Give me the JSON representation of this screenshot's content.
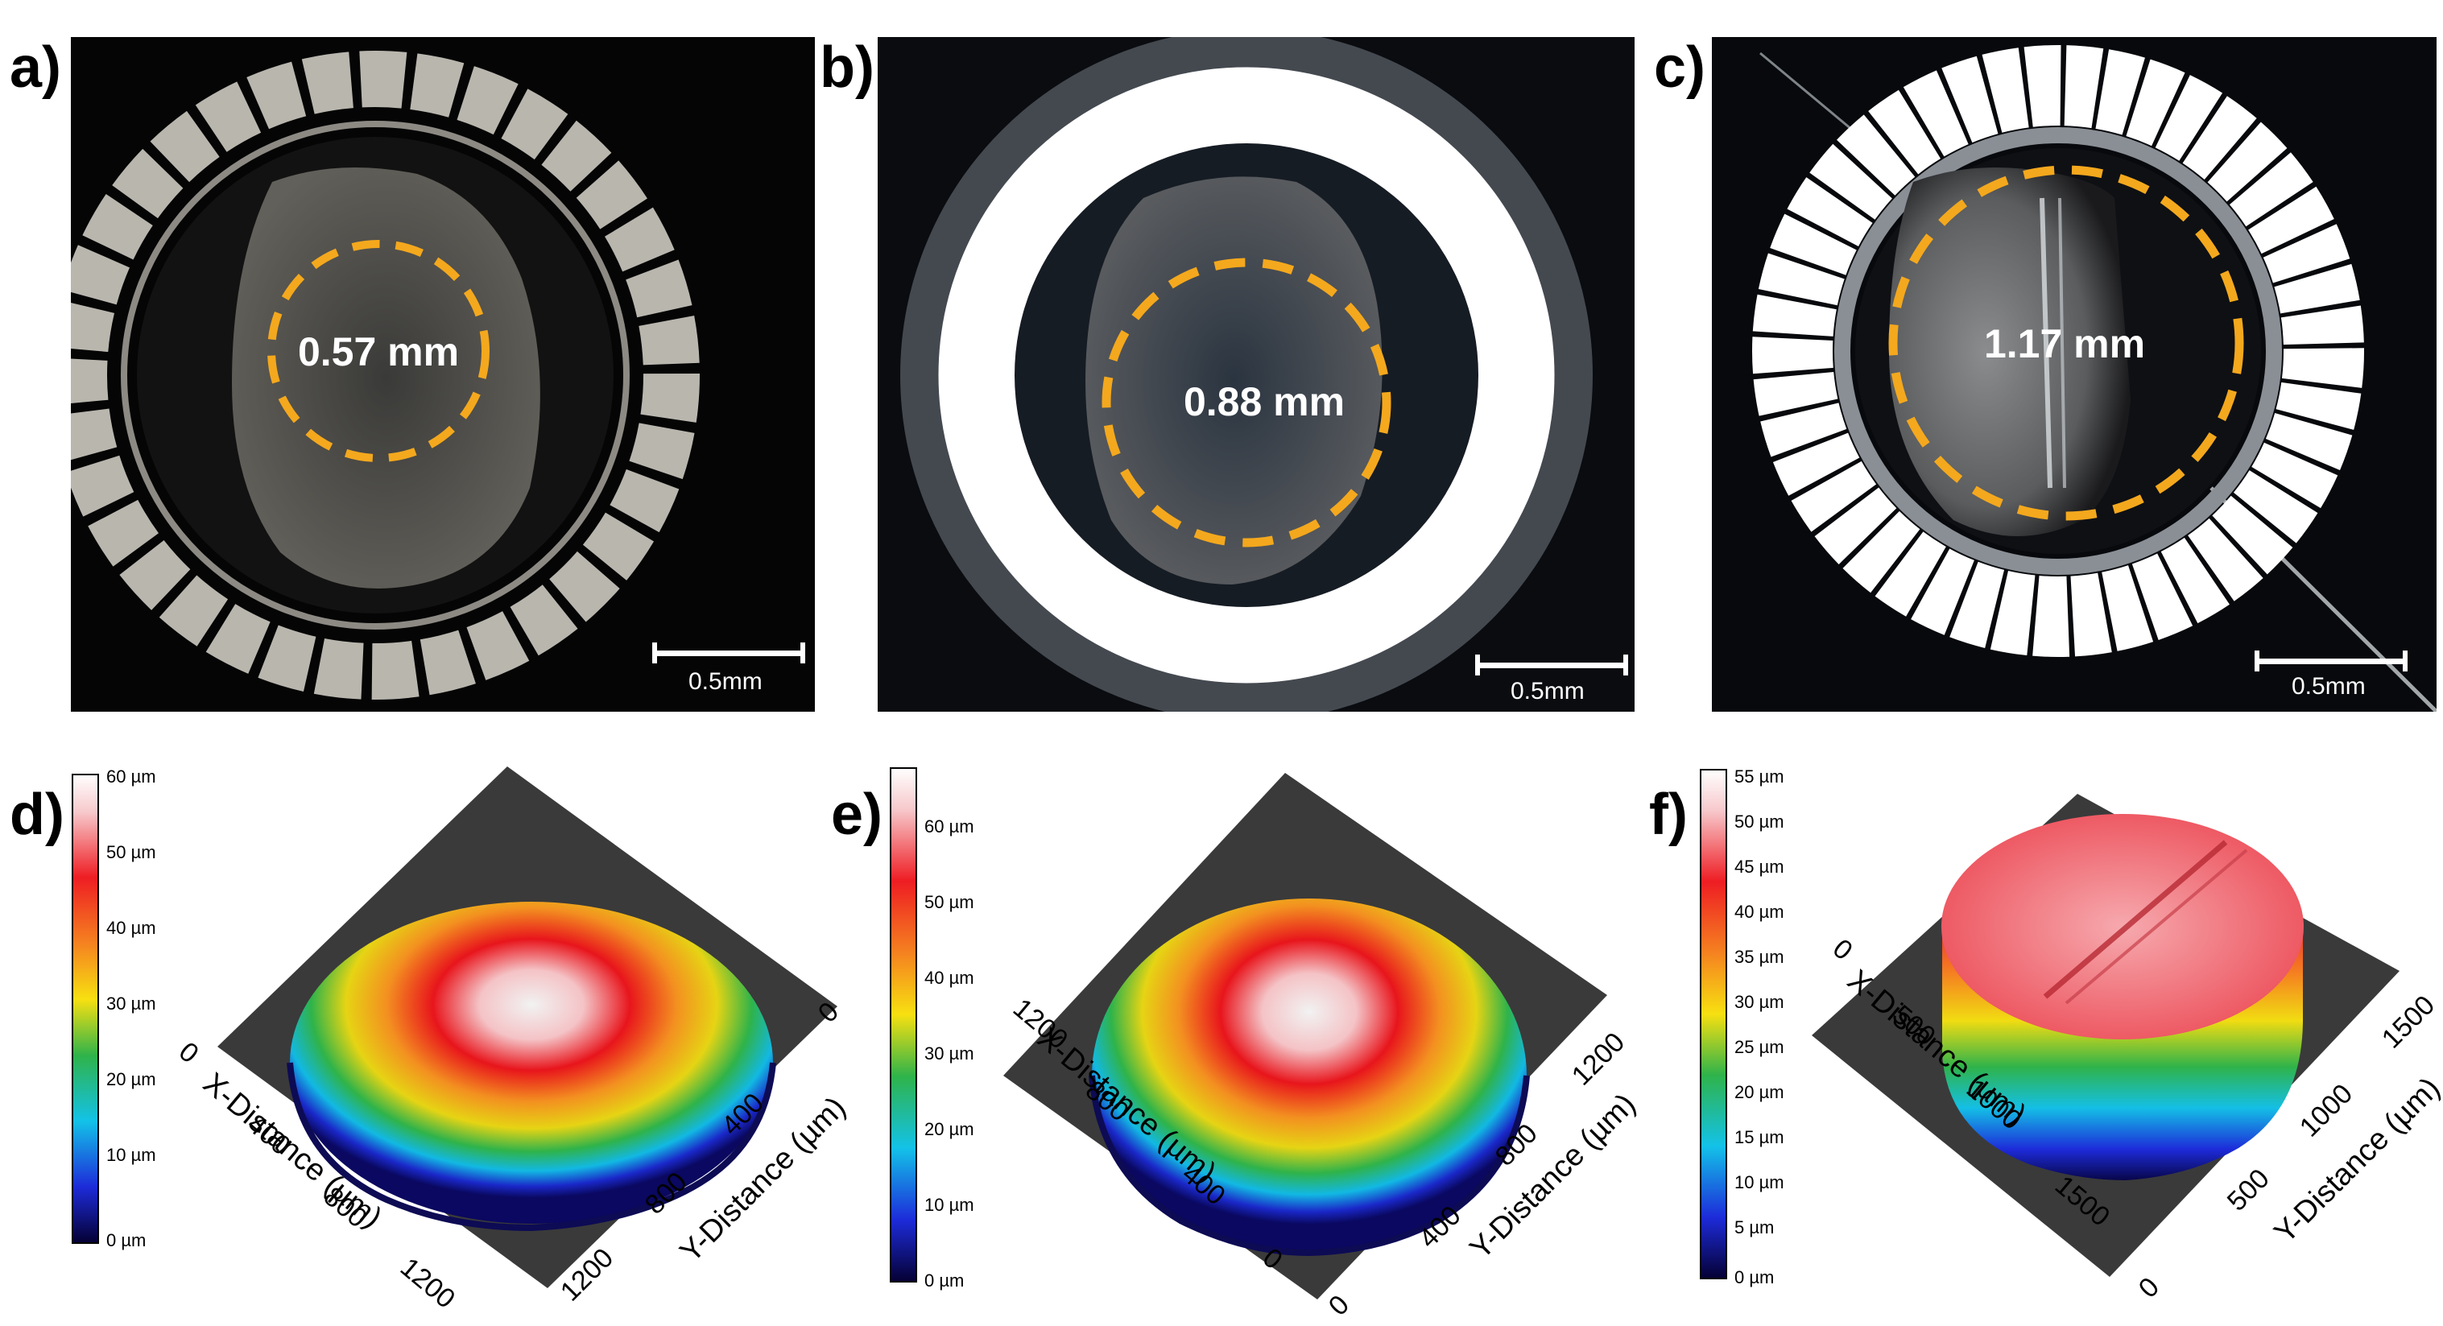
{
  "figure": {
    "colors": {
      "accent_circle": "#f4a81d",
      "background": "#ffffff",
      "base_plate": "#3a3a3a"
    },
    "top_panels": [
      {
        "letter": "a)",
        "diameter": "0.57 mm",
        "scale_bar": "0.5mm"
      },
      {
        "letter": "b)",
        "diameter": "0.88 mm",
        "scale_bar": "0.5mm"
      },
      {
        "letter": "c)",
        "diameter": "1.17 mm",
        "scale_bar": "0.5mm"
      }
    ],
    "bottom_panels": [
      {
        "letter": "d)",
        "colorbar": [
          "60 µm",
          "50 µm",
          "40 µm",
          "30 µm",
          "20 µm",
          "10 µm",
          "0 µm"
        ],
        "x_axis": {
          "title": "X-Distance (µm)",
          "ticks": [
            "0",
            "400",
            "800",
            "1200"
          ]
        },
        "y_axis": {
          "title": "Y-Distance (µm)",
          "ticks": [
            "0",
            "400",
            "800",
            "1200"
          ]
        }
      },
      {
        "letter": "e)",
        "colorbar": [
          "60 µm",
          "50 µm",
          "40 µm",
          "30 µm",
          "20 µm",
          "10 µm",
          "0 µm"
        ],
        "x_axis": {
          "title": "X-Distance (µm)",
          "ticks": [
            "1200",
            "800",
            "400",
            "0"
          ]
        },
        "y_axis": {
          "title": "Y-Distance (µm)",
          "ticks": [
            "0",
            "400",
            "800",
            "1200"
          ]
        }
      },
      {
        "letter": "f)",
        "colorbar": [
          "55 µm",
          "50 µm",
          "45 µm",
          "40 µm",
          "35 µm",
          "30 µm",
          "25 µm",
          "20 µm",
          "15 µm",
          "10 µm",
          "5 µm",
          "0 µm"
        ],
        "x_axis": {
          "title": "X-Distance (µm)",
          "ticks": [
            "0",
            "500",
            "1000",
            "1500"
          ]
        },
        "y_axis": {
          "title": "Y-Distance (µm)",
          "ticks": [
            "0",
            "500",
            "1000",
            "1500"
          ]
        }
      }
    ]
  }
}
